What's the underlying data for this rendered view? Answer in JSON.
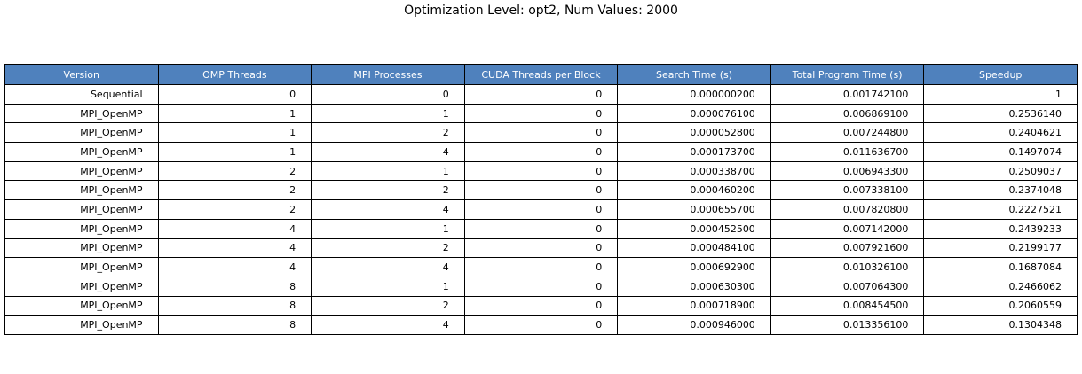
{
  "chart_data": {
    "type": "table",
    "title": "Optimization Level: opt2, Num Values: 2000",
    "columns": [
      "Version",
      "OMP Threads",
      "MPI Processes",
      "CUDA Threads per Block",
      "Search Time (s)",
      "Total Program Time (s)",
      "Speedup"
    ],
    "rows": [
      [
        "Sequential",
        "0",
        "0",
        "0",
        "0.000000200",
        "0.001742100",
        "1"
      ],
      [
        "MPI_OpenMP",
        "1",
        "1",
        "0",
        "0.000076100",
        "0.006869100",
        "0.2536140"
      ],
      [
        "MPI_OpenMP",
        "1",
        "2",
        "0",
        "0.000052800",
        "0.007244800",
        "0.2404621"
      ],
      [
        "MPI_OpenMP",
        "1",
        "4",
        "0",
        "0.000173700",
        "0.011636700",
        "0.1497074"
      ],
      [
        "MPI_OpenMP",
        "2",
        "1",
        "0",
        "0.000338700",
        "0.006943300",
        "0.2509037"
      ],
      [
        "MPI_OpenMP",
        "2",
        "2",
        "0",
        "0.000460200",
        "0.007338100",
        "0.2374048"
      ],
      [
        "MPI_OpenMP",
        "2",
        "4",
        "0",
        "0.000655700",
        "0.007820800",
        "0.2227521"
      ],
      [
        "MPI_OpenMP",
        "4",
        "1",
        "0",
        "0.000452500",
        "0.007142000",
        "0.2439233"
      ],
      [
        "MPI_OpenMP",
        "4",
        "2",
        "0",
        "0.000484100",
        "0.007921600",
        "0.2199177"
      ],
      [
        "MPI_OpenMP",
        "4",
        "4",
        "0",
        "0.000692900",
        "0.010326100",
        "0.1687084"
      ],
      [
        "MPI_OpenMP",
        "8",
        "1",
        "0",
        "0.000630300",
        "0.007064300",
        "0.2466062"
      ],
      [
        "MPI_OpenMP",
        "8",
        "2",
        "0",
        "0.000718900",
        "0.008454500",
        "0.2060559"
      ],
      [
        "MPI_OpenMP",
        "8",
        "4",
        "0",
        "0.000946000",
        "0.013356100",
        "0.1304348"
      ]
    ],
    "header_color": "#4f81bd",
    "header_text_color": "#ffffff",
    "grid": true
  }
}
